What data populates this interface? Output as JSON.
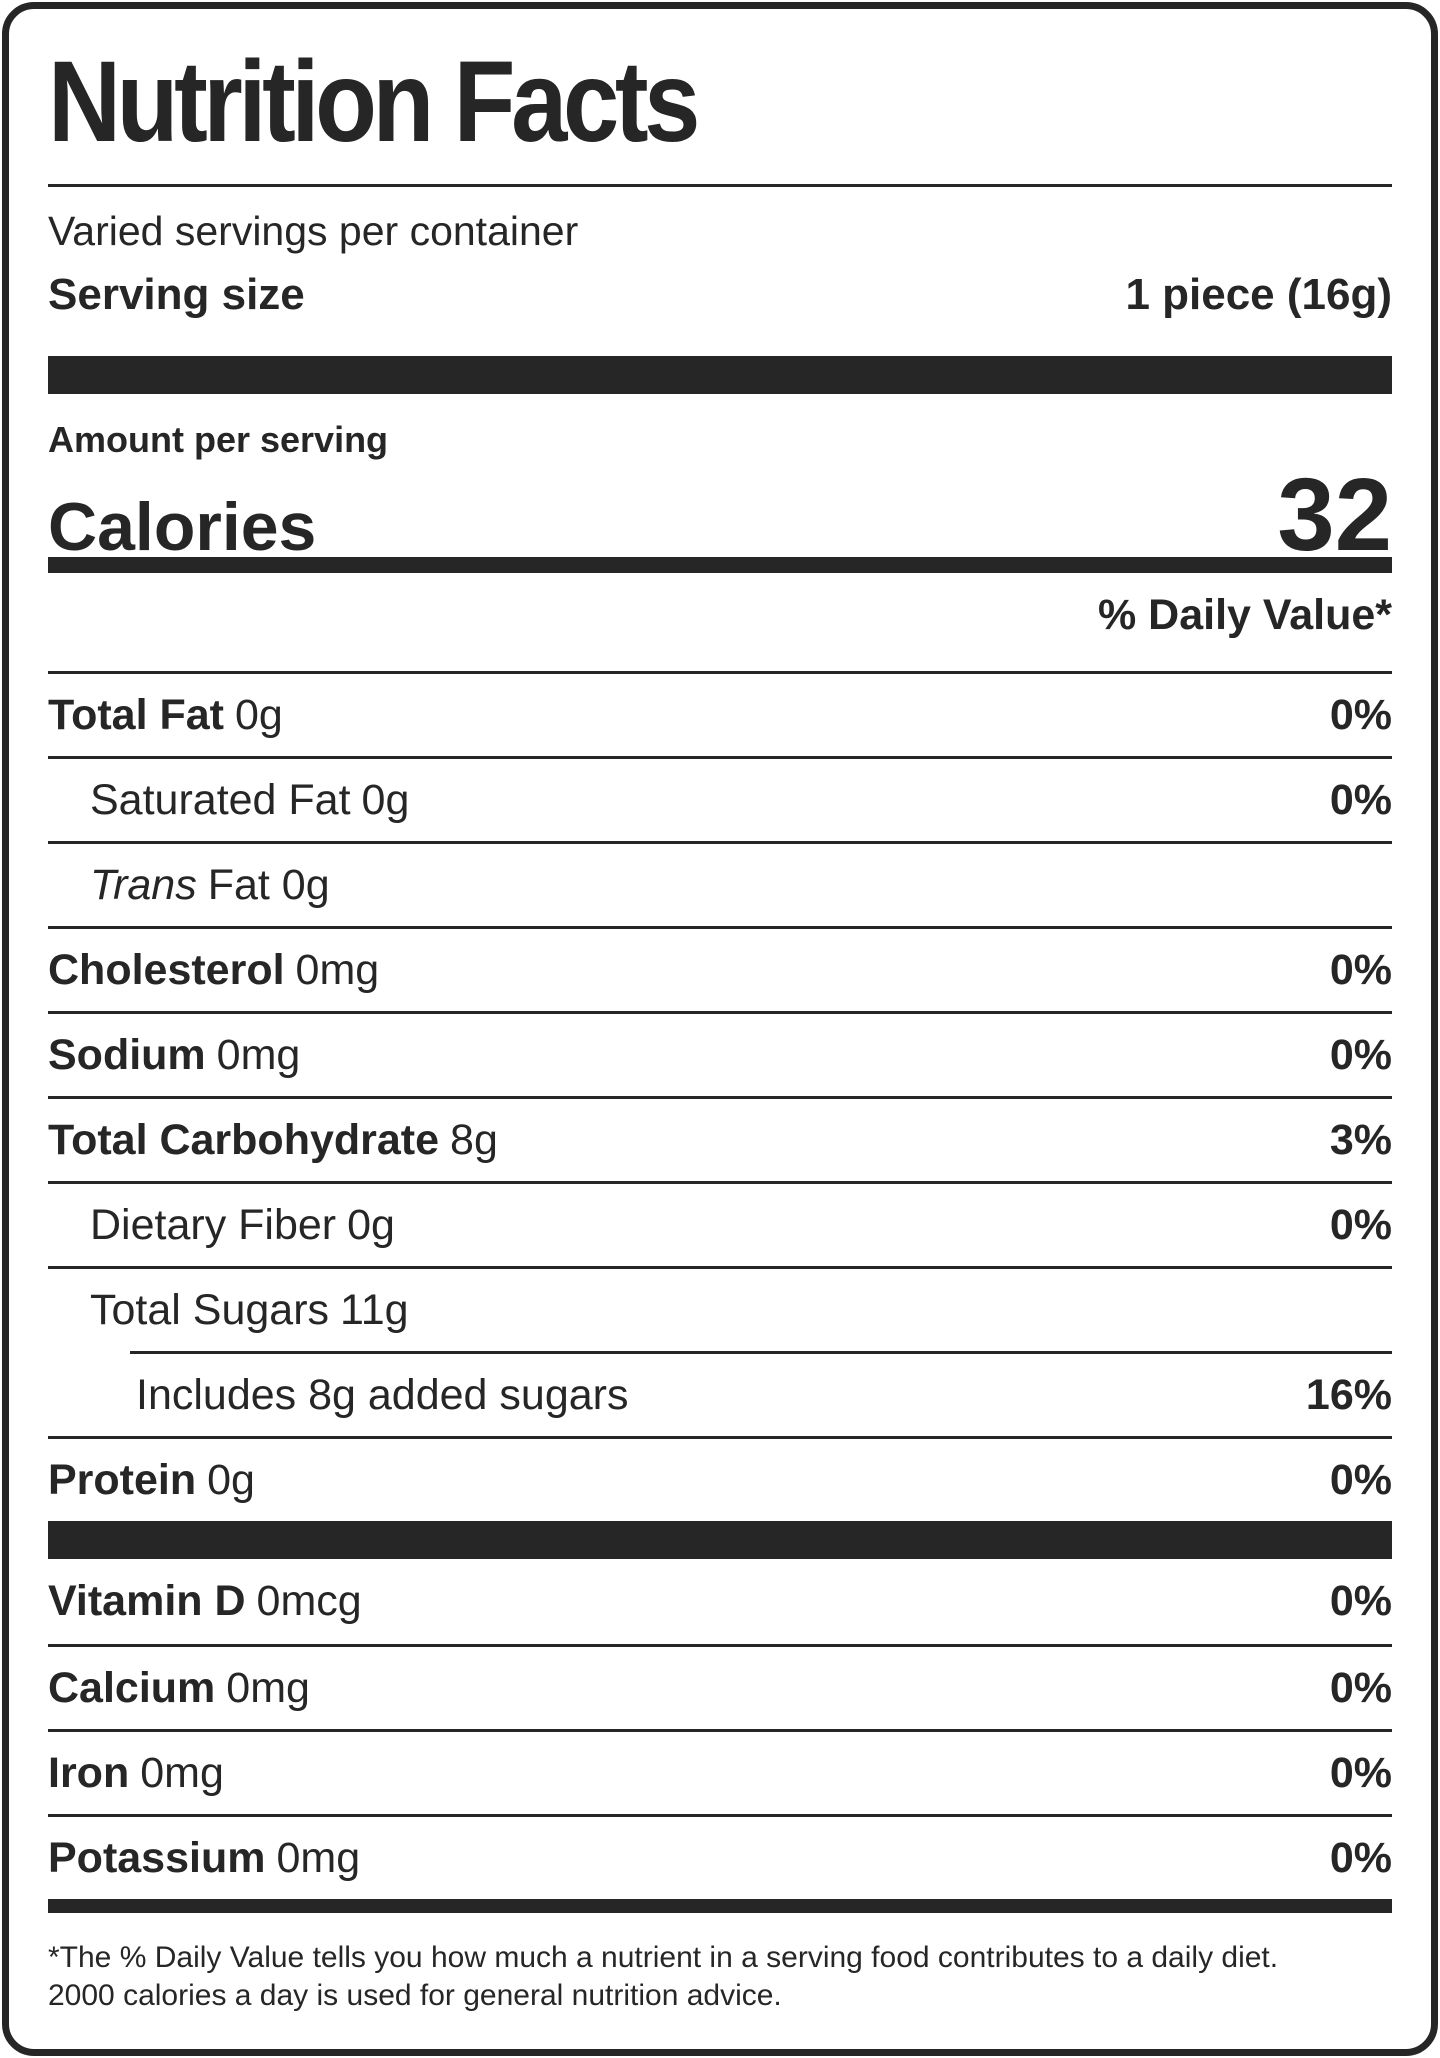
{
  "label": {
    "title": "Nutrition Facts",
    "servings_per_container": "Varied servings per container",
    "serving_size_label": "Serving size",
    "serving_size_value": "1 piece (16g)",
    "amount_per_serving": "Amount per serving",
    "calories_label": "Calories",
    "calories_value": "32",
    "daily_value_header": "% Daily Value*",
    "footnote_line1": "*The % Daily Value tells you how much a nutrient in a serving food contributes to a daily diet.",
    "footnote_line2": "2000 calories a day is used for general nutrition advice."
  },
  "nutrients": [
    {
      "name": "Total Fat",
      "amount": "0g",
      "dv": "0%"
    },
    {
      "name": "Saturated Fat",
      "amount": "0g",
      "dv": "0%"
    },
    {
      "name": "Trans",
      "amount": "Fat 0g",
      "dv": ""
    },
    {
      "name": "Cholesterol",
      "amount": "0mg",
      "dv": "0%"
    },
    {
      "name": "Sodium",
      "amount": "0mg",
      "dv": "0%"
    },
    {
      "name": "Total Carbohydrate",
      "amount": "8g",
      "dv": "3%"
    },
    {
      "name": "Dietary Fiber",
      "amount": "0g",
      "dv": "0%"
    },
    {
      "name": "Total Sugars",
      "amount": "11g",
      "dv": ""
    },
    {
      "name": "Includes 8g added sugars",
      "amount": "",
      "dv": "16%"
    },
    {
      "name": "Protein",
      "amount": "0g",
      "dv": "0%"
    }
  ],
  "vitamins": [
    {
      "name": "Vitamin D",
      "amount": "0mcg",
      "dv": "0%"
    },
    {
      "name": "Calcium",
      "amount": "0mg",
      "dv": "0%"
    },
    {
      "name": "Iron",
      "amount": "0mg",
      "dv": "0%"
    },
    {
      "name": "Potassium",
      "amount": "0mg",
      "dv": "0%"
    }
  ],
  "colors": {
    "ink": "#262626",
    "background": "#ffffff"
  }
}
